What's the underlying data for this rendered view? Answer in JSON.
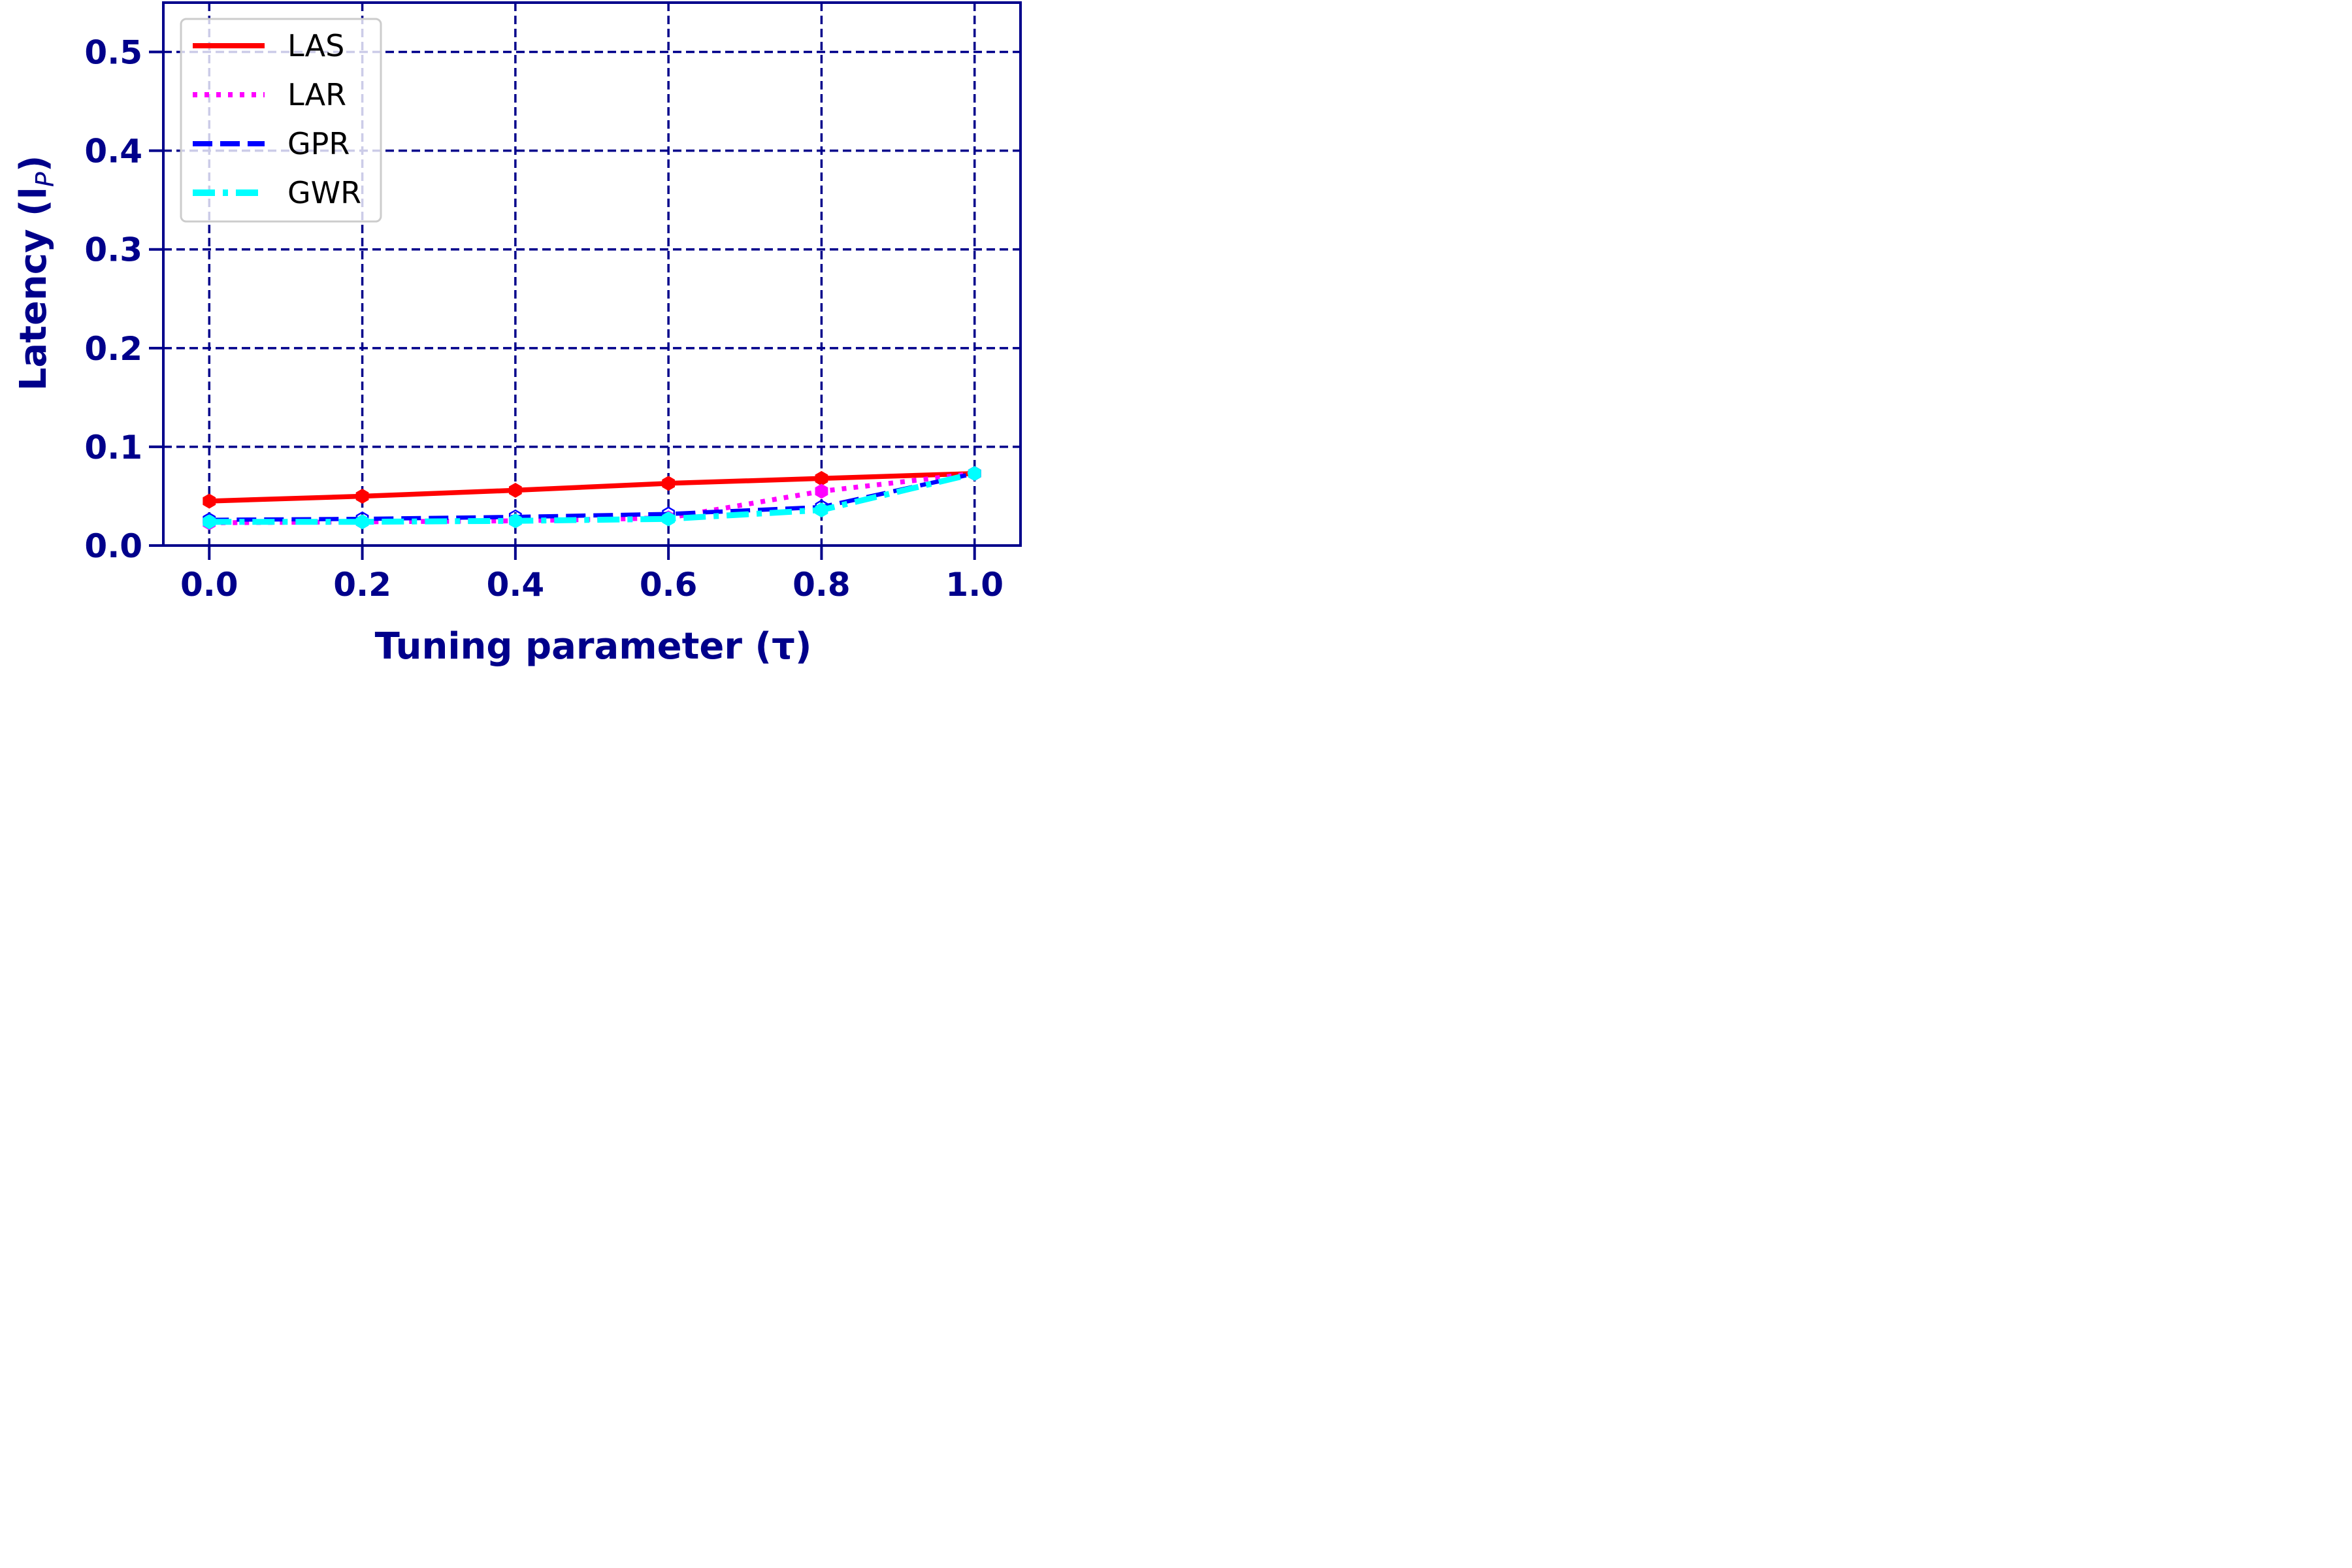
{
  "chart_data": {
    "type": "line",
    "xlabel": "Tuning parameter (τ)",
    "ylabel": "Latency (l",
    "ylabel_sub": "P",
    "ylabel_close": ")",
    "x": [
      0.0,
      0.2,
      0.4,
      0.6,
      0.8,
      1.0
    ],
    "xticks": [
      "0.0",
      "0.2",
      "0.4",
      "0.6",
      "0.8",
      "1.0"
    ],
    "yticks": [
      "0.0",
      "0.1",
      "0.2",
      "0.3",
      "0.4",
      "0.5"
    ],
    "xlim": [
      -0.06,
      1.06
    ],
    "ylim": [
      0.0,
      0.55
    ],
    "grid": true,
    "legend_position": "top-left",
    "series": [
      {
        "name": "LAS",
        "values": [
          0.045,
          0.05,
          0.056,
          0.063,
          0.068,
          0.073
        ],
        "color": "#ff0000",
        "style": "solid"
      },
      {
        "name": "LAR",
        "values": [
          0.023,
          0.024,
          0.025,
          0.028,
          0.055,
          0.073
        ],
        "color": "#ff00ff",
        "style": "dotted"
      },
      {
        "name": "GPR",
        "values": [
          0.026,
          0.027,
          0.029,
          0.032,
          0.039,
          0.073
        ],
        "color": "#0000ff",
        "style": "dashed"
      },
      {
        "name": "GWR",
        "values": [
          0.024,
          0.024,
          0.025,
          0.027,
          0.036,
          0.073
        ],
        "color": "#00ffff",
        "style": "dashdot"
      }
    ],
    "colors": {
      "axis": "#00008b",
      "grid": "#00008b"
    }
  }
}
